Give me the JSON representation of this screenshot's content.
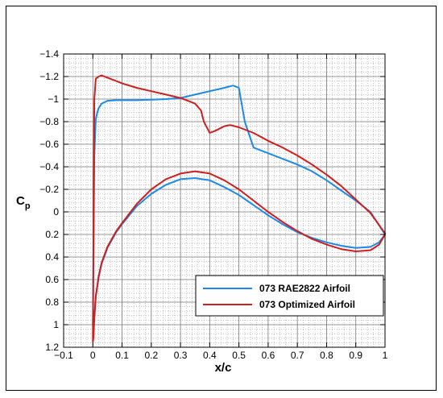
{
  "chart_data": {
    "type": "line",
    "title": "",
    "xlabel": "x/c",
    "ylabel": "Cp",
    "ylabel_main": "C",
    "ylabel_sub": "p",
    "xlim": [
      -0.1,
      1.0
    ],
    "ylim": [
      -1.4,
      1.2
    ],
    "y_inverted": true,
    "grid": true,
    "x_ticks": [
      -0.1,
      0,
      0.1,
      0.2,
      0.3,
      0.4,
      0.5,
      0.6,
      0.7,
      0.8,
      0.9,
      1
    ],
    "x_tick_labels": [
      "−0.1",
      "0",
      "0.1",
      "0.2",
      "0.3",
      "0.4",
      "0.5",
      "0.6",
      "0.7",
      "0.8",
      "0.9",
      "1"
    ],
    "y_ticks": [
      -1.4,
      -1.2,
      -1,
      -0.8,
      -0.6,
      -0.4,
      -0.2,
      0,
      0.2,
      0.4,
      0.6,
      0.8,
      1,
      1.2
    ],
    "y_tick_labels": [
      "−1.4",
      "−1.2",
      "−1",
      "−0.8",
      "−0.6",
      "−0.4",
      "−0.2",
      "0",
      "0.2",
      "0.4",
      "0.6",
      "0.8",
      "1",
      "1.2"
    ],
    "legend_position": "bottom-right",
    "series": [
      {
        "name": "073 RAE2822 Airfoil",
        "color": "#1e88e5",
        "upper": {
          "x": [
            0,
            0.002,
            0.005,
            0.01,
            0.015,
            0.02,
            0.03,
            0.05,
            0.08,
            0.1,
            0.15,
            0.2,
            0.25,
            0.3,
            0.35,
            0.4,
            0.45,
            0.48,
            0.5,
            0.52,
            0.55,
            0.6,
            0.65,
            0.7,
            0.75,
            0.8,
            0.85,
            0.9,
            0.95,
            1.0
          ],
          "y": [
            1.0,
            0.5,
            -0.5,
            -0.82,
            -0.88,
            -0.92,
            -0.96,
            -0.985,
            -0.99,
            -0.99,
            -0.99,
            -0.995,
            -1.0,
            -1.01,
            -1.04,
            -1.07,
            -1.1,
            -1.12,
            -1.1,
            -0.8,
            -0.57,
            -0.52,
            -0.47,
            -0.42,
            -0.36,
            -0.28,
            -0.19,
            -0.1,
            0.0,
            0.2
          ]
        },
        "lower": {
          "x": [
            0,
            0.002,
            0.005,
            0.01,
            0.02,
            0.03,
            0.05,
            0.08,
            0.1,
            0.15,
            0.2,
            0.25,
            0.3,
            0.35,
            0.4,
            0.45,
            0.5,
            0.55,
            0.6,
            0.65,
            0.7,
            0.75,
            0.8,
            0.85,
            0.9,
            0.95,
            0.98,
            1.0
          ],
          "y": [
            1.0,
            1.05,
            0.92,
            0.75,
            0.58,
            0.46,
            0.32,
            0.18,
            0.11,
            -0.05,
            -0.16,
            -0.24,
            -0.29,
            -0.3,
            -0.28,
            -0.22,
            -0.15,
            -0.06,
            0.03,
            0.11,
            0.18,
            0.23,
            0.27,
            0.3,
            0.32,
            0.31,
            0.27,
            0.2
          ]
        }
      },
      {
        "name": "073 Optimized Airfoil",
        "color": "#cc1f1f",
        "upper": {
          "x": [
            0,
            0.002,
            0.005,
            0.01,
            0.02,
            0.03,
            0.05,
            0.08,
            0.1,
            0.15,
            0.2,
            0.25,
            0.3,
            0.35,
            0.37,
            0.38,
            0.4,
            0.42,
            0.45,
            0.47,
            0.5,
            0.55,
            0.6,
            0.65,
            0.7,
            0.75,
            0.8,
            0.85,
            0.9,
            0.95,
            1.0
          ],
          "y": [
            1.15,
            0.3,
            -1.0,
            -1.18,
            -1.2,
            -1.21,
            -1.19,
            -1.16,
            -1.14,
            -1.1,
            -1.07,
            -1.04,
            -1.01,
            -0.96,
            -0.9,
            -0.8,
            -0.7,
            -0.72,
            -0.76,
            -0.77,
            -0.75,
            -0.7,
            -0.63,
            -0.57,
            -0.5,
            -0.42,
            -0.33,
            -0.23,
            -0.11,
            0.01,
            0.19
          ]
        },
        "lower": {
          "x": [
            0,
            0.002,
            0.005,
            0.01,
            0.02,
            0.03,
            0.05,
            0.08,
            0.1,
            0.15,
            0.2,
            0.25,
            0.3,
            0.35,
            0.4,
            0.45,
            0.5,
            0.55,
            0.6,
            0.65,
            0.7,
            0.75,
            0.8,
            0.85,
            0.9,
            0.95,
            0.98,
            1.0
          ],
          "y": [
            1.15,
            1.12,
            0.95,
            0.75,
            0.57,
            0.45,
            0.31,
            0.17,
            0.1,
            -0.07,
            -0.2,
            -0.29,
            -0.34,
            -0.36,
            -0.34,
            -0.28,
            -0.2,
            -0.1,
            0.0,
            0.09,
            0.17,
            0.24,
            0.29,
            0.33,
            0.35,
            0.34,
            0.29,
            0.2
          ]
        }
      }
    ]
  }
}
